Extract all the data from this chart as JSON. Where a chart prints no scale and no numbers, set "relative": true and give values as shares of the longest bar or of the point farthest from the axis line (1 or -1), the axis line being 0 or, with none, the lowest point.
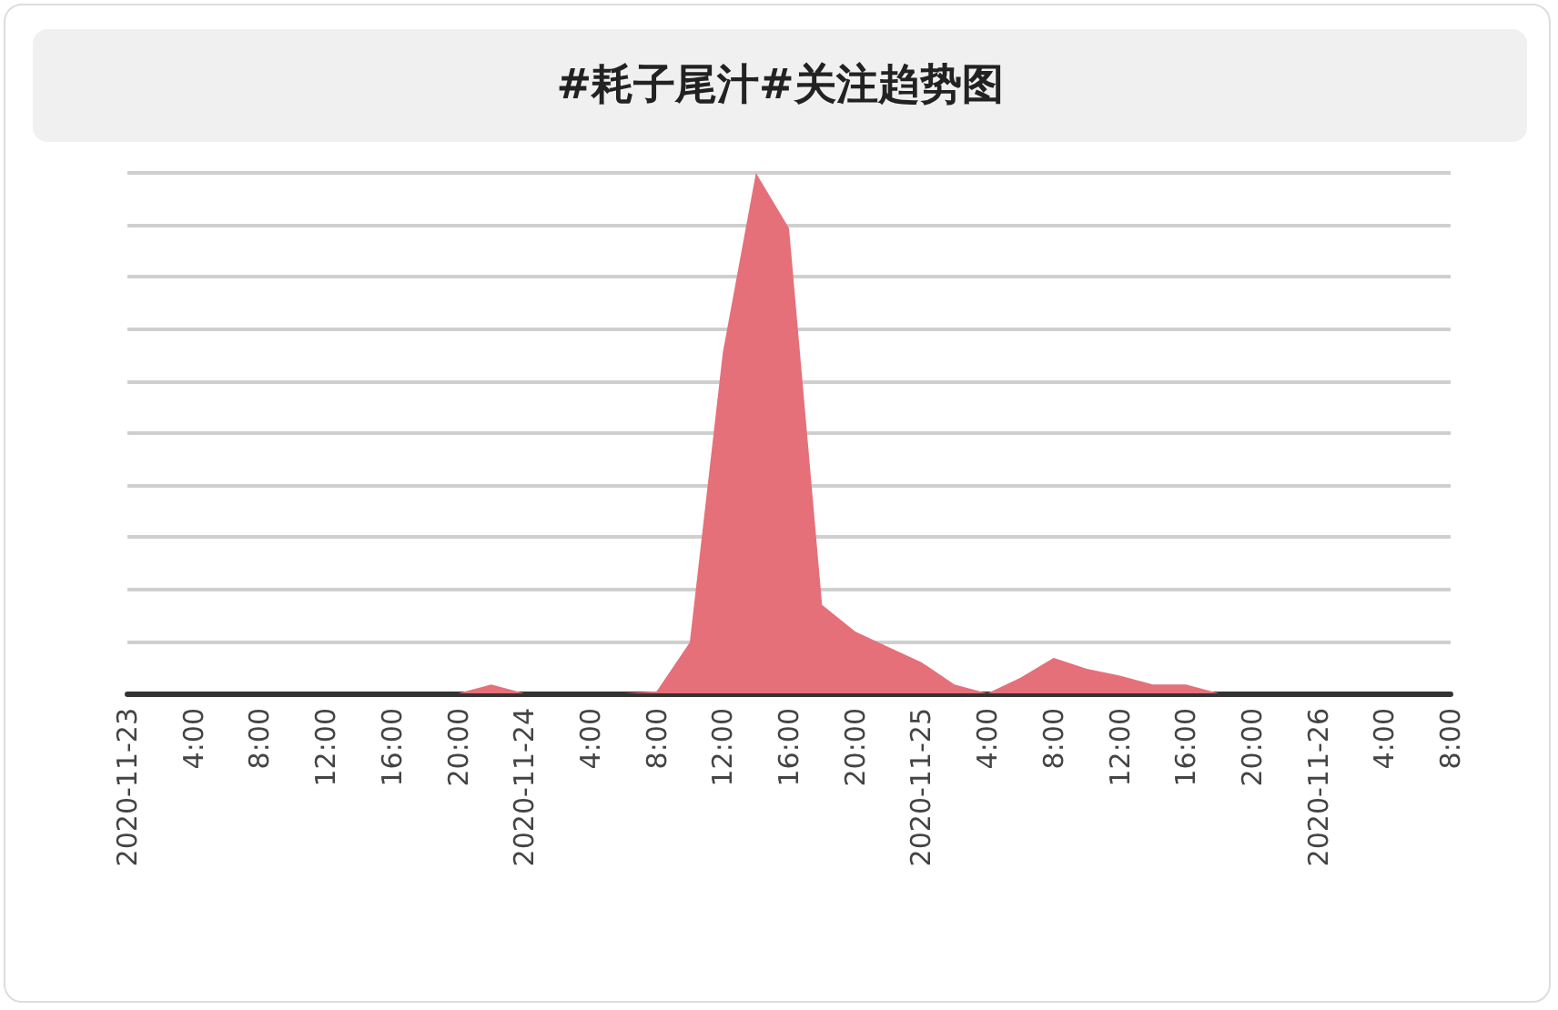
{
  "chart_data": {
    "type": "area",
    "title": "#耗子尾汁#关注趋势图",
    "relative": true,
    "grid": "y",
    "color": "#e5707a",
    "x": [
      "2020-11-23T00:00",
      "2020-11-23T02:00",
      "2020-11-23T04:00",
      "2020-11-23T06:00",
      "2020-11-23T08:00",
      "2020-11-23T10:00",
      "2020-11-23T12:00",
      "2020-11-23T14:00",
      "2020-11-23T16:00",
      "2020-11-23T18:00",
      "2020-11-23T20:00",
      "2020-11-23T22:00",
      "2020-11-24T00:00",
      "2020-11-24T02:00",
      "2020-11-24T04:00",
      "2020-11-24T06:00",
      "2020-11-24T08:00",
      "2020-11-24T10:00",
      "2020-11-24T12:00",
      "2020-11-24T14:00",
      "2020-11-24T16:00",
      "2020-11-24T18:00",
      "2020-11-24T20:00",
      "2020-11-24T22:00",
      "2020-11-25T00:00",
      "2020-11-25T02:00",
      "2020-11-25T04:00",
      "2020-11-25T06:00",
      "2020-11-25T08:00",
      "2020-11-25T10:00",
      "2020-11-25T12:00",
      "2020-11-25T14:00",
      "2020-11-25T16:00",
      "2020-11-25T18:00",
      "2020-11-25T20:00",
      "2020-11-25T22:00",
      "2020-11-26T00:00",
      "2020-11-26T02:00",
      "2020-11-26T04:00",
      "2020-11-26T06:00",
      "2020-11-26T08:00"
    ],
    "values": [
      0,
      0,
      0,
      0,
      0,
      0,
      0,
      0,
      0,
      0,
      0,
      0.017,
      0,
      0,
      0,
      0,
      0.004,
      0.098,
      0.655,
      1,
      0.894,
      0.17,
      0.119,
      0.089,
      0.06,
      0.017,
      0,
      0.03,
      0.068,
      0.047,
      0.034,
      0.017,
      0.017,
      0,
      0,
      0,
      0,
      0,
      0,
      0,
      0
    ],
    "xlim": [
      "2020-11-23T00:00",
      "2020-11-26T08:00"
    ],
    "xticks": [
      {
        "value": "2020-11-23T00:00",
        "label": "2020-11-23"
      },
      {
        "value": "2020-11-23T04:00",
        "label": "4:00"
      },
      {
        "value": "2020-11-23T08:00",
        "label": "8:00"
      },
      {
        "value": "2020-11-23T12:00",
        "label": "12:00"
      },
      {
        "value": "2020-11-23T16:00",
        "label": "16:00"
      },
      {
        "value": "2020-11-23T20:00",
        "label": "20:00"
      },
      {
        "value": "2020-11-24T00:00",
        "label": "2020-11-24"
      },
      {
        "value": "2020-11-24T04:00",
        "label": "4:00"
      },
      {
        "value": "2020-11-24T08:00",
        "label": "8:00"
      },
      {
        "value": "2020-11-24T12:00",
        "label": "12:00"
      },
      {
        "value": "2020-11-24T16:00",
        "label": "16:00"
      },
      {
        "value": "2020-11-24T20:00",
        "label": "20:00"
      },
      {
        "value": "2020-11-25T00:00",
        "label": "2020-11-25"
      },
      {
        "value": "2020-11-25T04:00",
        "label": "4:00"
      },
      {
        "value": "2020-11-25T08:00",
        "label": "8:00"
      },
      {
        "value": "2020-11-25T12:00",
        "label": "12:00"
      },
      {
        "value": "2020-11-25T16:00",
        "label": "16:00"
      },
      {
        "value": "2020-11-25T20:00",
        "label": "20:00"
      },
      {
        "value": "2020-11-26T00:00",
        "label": "2020-11-26"
      },
      {
        "value": "2020-11-26T04:00",
        "label": "4:00"
      },
      {
        "value": "2020-11-26T08:00",
        "label": "8:00"
      }
    ]
  }
}
